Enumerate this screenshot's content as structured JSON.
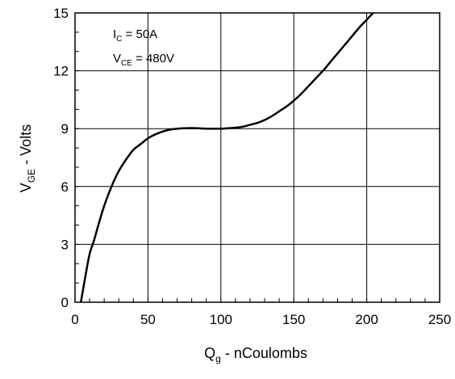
{
  "chart_data": {
    "type": "line",
    "title": "",
    "xlabel": {
      "main": "Q",
      "sub": "g",
      "rest": " - nCoulombs"
    },
    "ylabel": {
      "main": "V",
      "sub": "GE",
      "rest": " - Volts"
    },
    "xlim": [
      0,
      250
    ],
    "ylim": [
      0,
      15
    ],
    "x_ticks": [
      0,
      50,
      100,
      150,
      200,
      250
    ],
    "y_ticks": [
      0,
      3,
      6,
      9,
      12,
      15
    ],
    "x_tick_labels": [
      "0",
      "50",
      "100",
      "150",
      "200",
      "250"
    ],
    "y_tick_labels": [
      "0",
      "3",
      "6",
      "9",
      "12",
      "15"
    ],
    "x_minor_step": 10,
    "y_minor_step": 1,
    "grid": true,
    "annotations": [
      {
        "main": "I",
        "sub": "C",
        "rest": " = 50A"
      },
      {
        "main": "V",
        "sub": "CE",
        "rest": " = 480V"
      }
    ],
    "series": [
      {
        "color": "#000000",
        "x": [
          4,
          7,
          10,
          13,
          16,
          20,
          25,
          30,
          35,
          40,
          45,
          50,
          55,
          60,
          65,
          70,
          75,
          80,
          85,
          90,
          95,
          100,
          105,
          110,
          115,
          120,
          125,
          130,
          135,
          140,
          145,
          150,
          155,
          160,
          165,
          170,
          175,
          180,
          185,
          190,
          195,
          200,
          205,
          210
        ],
        "y": [
          0,
          1.3,
          2.5,
          3.2,
          4.0,
          5.0,
          6.0,
          6.8,
          7.4,
          7.9,
          8.2,
          8.5,
          8.7,
          8.85,
          8.95,
          9.0,
          9.02,
          9.03,
          9.02,
          9.0,
          9.0,
          9.0,
          9.02,
          9.05,
          9.1,
          9.2,
          9.3,
          9.45,
          9.65,
          9.9,
          10.15,
          10.45,
          10.8,
          11.2,
          11.6,
          12.0,
          12.45,
          12.9,
          13.35,
          13.8,
          14.25,
          14.65,
          15.05,
          15.4
        ]
      }
    ]
  }
}
